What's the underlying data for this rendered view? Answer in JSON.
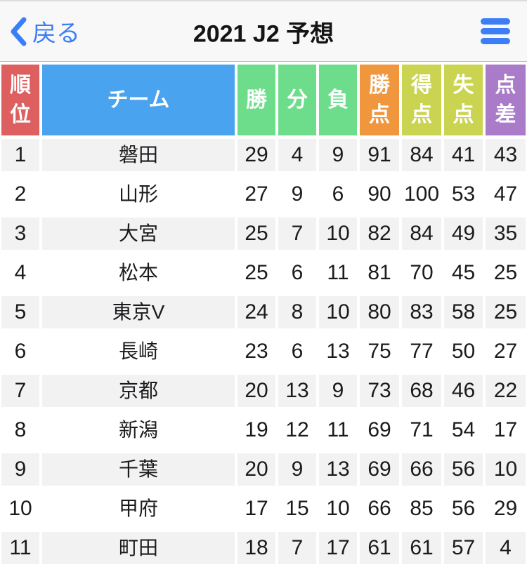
{
  "navbar": {
    "back_label": "戻る",
    "title": "2021 J2 予想"
  },
  "colors": {
    "accent_blue": "#3b7ef7",
    "row_stripe": "#f2f2f3"
  },
  "table": {
    "columns": [
      {
        "key": "rank",
        "label": "順位",
        "color": "#dd5f5f"
      },
      {
        "key": "team",
        "label": "チーム",
        "color": "#4aa3ef"
      },
      {
        "key": "wins",
        "label": "勝",
        "color": "#6edd8b"
      },
      {
        "key": "draws",
        "label": "分",
        "color": "#6edd8b"
      },
      {
        "key": "losses",
        "label": "負",
        "color": "#6edd8b"
      },
      {
        "key": "points",
        "label": "勝点",
        "color": "#f0963d"
      },
      {
        "key": "goals_for",
        "label": "得点",
        "color": "#cbd451"
      },
      {
        "key": "goals_against",
        "label": "失点",
        "color": "#cbd451"
      },
      {
        "key": "goal_diff",
        "label": "点差",
        "color": "#a97bc9"
      }
    ],
    "rows": [
      {
        "rank": 1,
        "team": "磐田",
        "wins": 29,
        "draws": 4,
        "losses": 9,
        "points": 91,
        "goals_for": 84,
        "goals_against": 41,
        "goal_diff": 43
      },
      {
        "rank": 2,
        "team": "山形",
        "wins": 27,
        "draws": 9,
        "losses": 6,
        "points": 90,
        "goals_for": 100,
        "goals_against": 53,
        "goal_diff": 47
      },
      {
        "rank": 3,
        "team": "大宮",
        "wins": 25,
        "draws": 7,
        "losses": 10,
        "points": 82,
        "goals_for": 84,
        "goals_against": 49,
        "goal_diff": 35
      },
      {
        "rank": 4,
        "team": "松本",
        "wins": 25,
        "draws": 6,
        "losses": 11,
        "points": 81,
        "goals_for": 70,
        "goals_against": 45,
        "goal_diff": 25
      },
      {
        "rank": 5,
        "team": "東京V",
        "wins": 24,
        "draws": 8,
        "losses": 10,
        "points": 80,
        "goals_for": 83,
        "goals_against": 58,
        "goal_diff": 25
      },
      {
        "rank": 6,
        "team": "長崎",
        "wins": 23,
        "draws": 6,
        "losses": 13,
        "points": 75,
        "goals_for": 77,
        "goals_against": 50,
        "goal_diff": 27
      },
      {
        "rank": 7,
        "team": "京都",
        "wins": 20,
        "draws": 13,
        "losses": 9,
        "points": 73,
        "goals_for": 68,
        "goals_against": 46,
        "goal_diff": 22
      },
      {
        "rank": 8,
        "team": "新潟",
        "wins": 19,
        "draws": 12,
        "losses": 11,
        "points": 69,
        "goals_for": 71,
        "goals_against": 54,
        "goal_diff": 17
      },
      {
        "rank": 9,
        "team": "千葉",
        "wins": 20,
        "draws": 9,
        "losses": 13,
        "points": 69,
        "goals_for": 66,
        "goals_against": 56,
        "goal_diff": 10
      },
      {
        "rank": 10,
        "team": "甲府",
        "wins": 17,
        "draws": 15,
        "losses": 10,
        "points": 66,
        "goals_for": 85,
        "goals_against": 56,
        "goal_diff": 29
      },
      {
        "rank": 11,
        "team": "町田",
        "wins": 18,
        "draws": 7,
        "losses": 17,
        "points": 61,
        "goals_for": 61,
        "goals_against": 57,
        "goal_diff": 4
      }
    ]
  }
}
